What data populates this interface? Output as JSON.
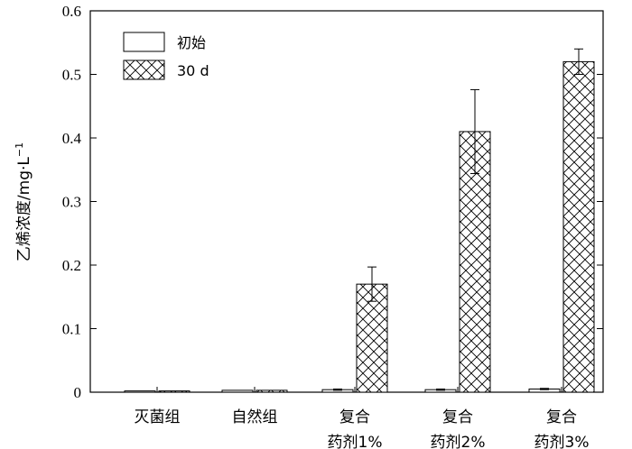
{
  "chart_data": {
    "type": "bar",
    "ylabel": "乙烯浓度/mg·L",
    "ylabel_superscript": "−1",
    "ylim": [
      0,
      0.6
    ],
    "yticks": [
      "0",
      "0.1",
      "0.2",
      "0.3",
      "0.4",
      "0.5",
      "0.6"
    ],
    "categories": [
      {
        "lines": [
          "灭菌组"
        ]
      },
      {
        "lines": [
          "自然组"
        ]
      },
      {
        "lines": [
          "复合",
          "药剂1%"
        ]
      },
      {
        "lines": [
          "复合",
          "药剂2%"
        ]
      },
      {
        "lines": [
          "复合",
          "药剂3%"
        ]
      }
    ],
    "series": [
      {
        "name": "初始",
        "pattern": "none",
        "values": [
          0.002,
          0.003,
          0.004,
          0.004,
          0.005
        ],
        "errors": [
          0,
          0,
          0.001,
          0.001,
          0.001
        ]
      },
      {
        "name": "30 d",
        "pattern": "crosshatch",
        "values": [
          0.002,
          0.003,
          0.17,
          0.41,
          0.52
        ],
        "errors": [
          0,
          0,
          0.027,
          0.066,
          0.02
        ]
      }
    ],
    "legend_position": "top-left",
    "grid": false
  }
}
